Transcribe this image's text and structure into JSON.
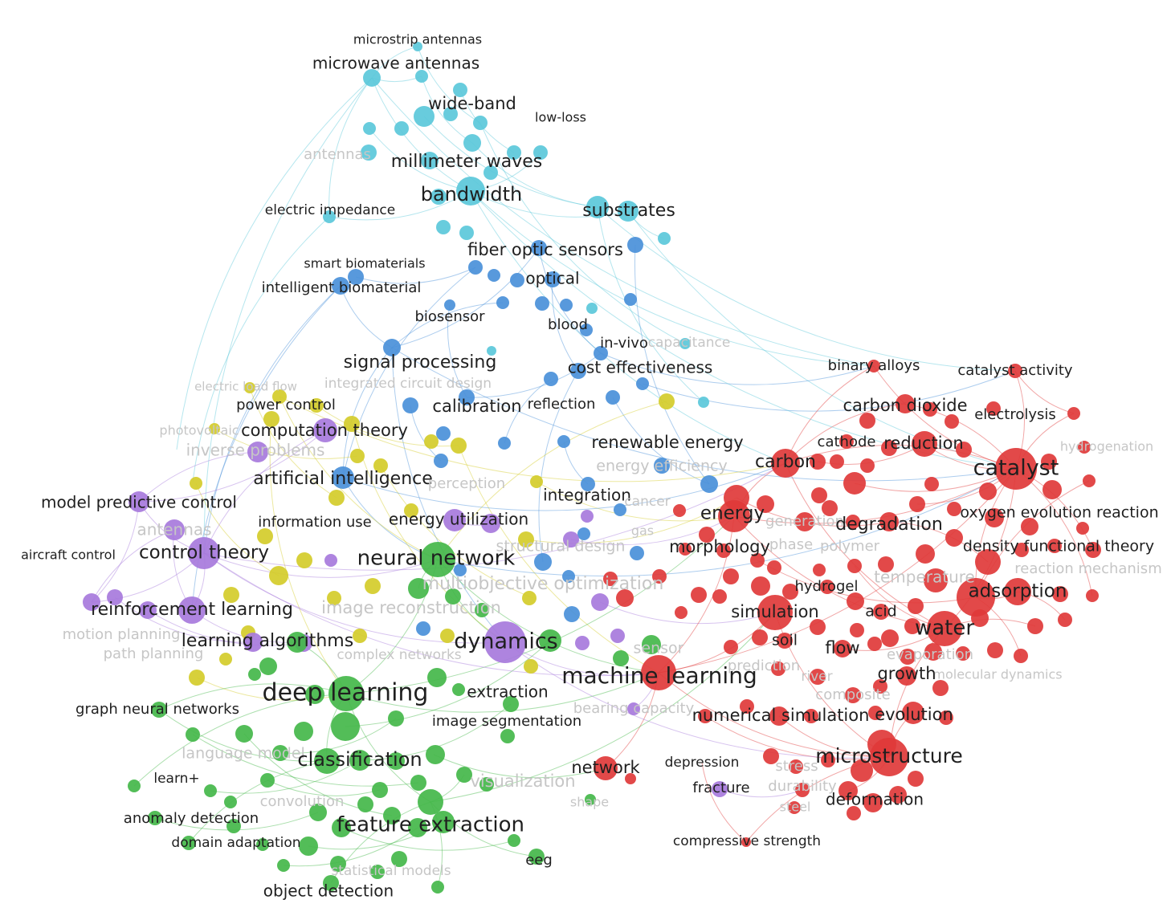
{
  "colors": {
    "cyan": "#5bc8da",
    "blue": "#4a90d9",
    "yellow": "#d4cc2a",
    "purple": "#a779dc",
    "green": "#44b74a",
    "red": "#e03a3a"
  },
  "labels": {
    "microstrip_antennas": "microstrip antennas",
    "microwave_antennas": "microwave antennas",
    "wide_band": "wide-band",
    "low_loss": "low-loss",
    "antennas_faded": "antennas",
    "millimeter_waves": "millimeter waves",
    "bandwidth": "bandwidth",
    "electric_impedance": "electric impedance",
    "substrates": "substrates",
    "fiber_optic_sensors": "fiber optic sensors",
    "smart_biomaterials": "smart biomaterials",
    "intelligent_biomaterial": "intelligent biomaterial",
    "optical": "optical",
    "biosensor": "biosensor",
    "blood": "blood",
    "in_vivo": "in-vivo",
    "capacitance": "capacitance",
    "signal_processing": "signal processing",
    "cost_effectiveness": "cost effectiveness",
    "electric_load_flow": "electric load flow",
    "integrated_circuit_design": "integrated circuit design",
    "power_control": "power control",
    "calibration": "calibration",
    "reflection": "reflection",
    "photovoltaic": "photovoltaic",
    "computation_theory": "computation theory",
    "inverse_problems": "inverse problems",
    "renewable_energy": "renewable energy",
    "energy_efficiency": "energy efficiency",
    "artificial_intelligence": "artificial intelligence",
    "perception": "perception",
    "integration": "integration",
    "cancer": "cancer",
    "model_predictive_control": "model predictive control",
    "antennas_faded2": "antennas",
    "information_use": "information use",
    "energy_utilization": "energy utilization",
    "gas": "gas",
    "aircraft_control": "aircraft control",
    "control_theory": "control theory",
    "neural_network": "neural network",
    "structural_design": "structural design",
    "multiobjective_optimization": "multiobjective optimization",
    "reinforcement_learning": "reinforcement learning",
    "image_reconstruction": "image reconstruction",
    "motion_planning": "motion planning",
    "path_planning": "path planning",
    "learning_algorithms": "learning algorithms",
    "dynamics": "dynamics",
    "sensor": "sensor",
    "complex_networks": "complex networks",
    "machine_learning": "machine learning",
    "prediction": "prediction",
    "deep_learning": "deep learning",
    "extraction": "extraction",
    "graph_neural_networks": "graph neural networks",
    "bearing_capacity": "bearing capacity",
    "image_segmentation": "image segmentation",
    "language_model": "language model",
    "classification": "classification",
    "learn": "learn+",
    "visualization": "visualization",
    "network": "network",
    "convolution": "convolution",
    "shape": "shape",
    "anomaly_detection": "anomaly detection",
    "feature_extraction": "feature extraction",
    "domain_adaptation": "domain adaptation",
    "eeg": "eeg",
    "statistical_models": "statistical models",
    "object_detection": "object detection",
    "binary_alloys": "binary alloys",
    "catalyst_activity": "catalyst activity",
    "carbon_dioxide": "carbon dioxide",
    "electrolysis": "electrolysis",
    "cathode": "cathode",
    "reduction": "reduction",
    "carbon": "carbon",
    "catalyst": "catalyst",
    "hydrogenation": "hydrogenation",
    "energy": "energy",
    "generation": "generation",
    "degradation": "degradation",
    "oxygen_evolution_reaction": "oxygen evolution reaction",
    "morphology": "morphology",
    "phase": "phase",
    "polymer": "polymer",
    "density_functional_theory": "density functional theory",
    "reaction_mechanism": "reaction mechanism",
    "hydrogel": "hydrogel",
    "temperature": "temperature",
    "adsorption": "adsorption",
    "simulation": "simulation",
    "acid": "acid",
    "water": "water",
    "soil": "soil",
    "flow": "flow",
    "evaporation": "evaporation",
    "molecular_dynamics": "molecular dynamics",
    "growth": "growth",
    "prediction2": "prediction",
    "river": "river",
    "composite": "composite",
    "numerical_simulation": "numerical simulation",
    "evolution": "evolution",
    "microstructure": "microstructure",
    "depression": "depression",
    "stress": "stress",
    "fracture": "fracture",
    "durability": "durability",
    "steel": "steel",
    "deformation": "deformation",
    "compressive_strength": "compressive strength"
  }
}
